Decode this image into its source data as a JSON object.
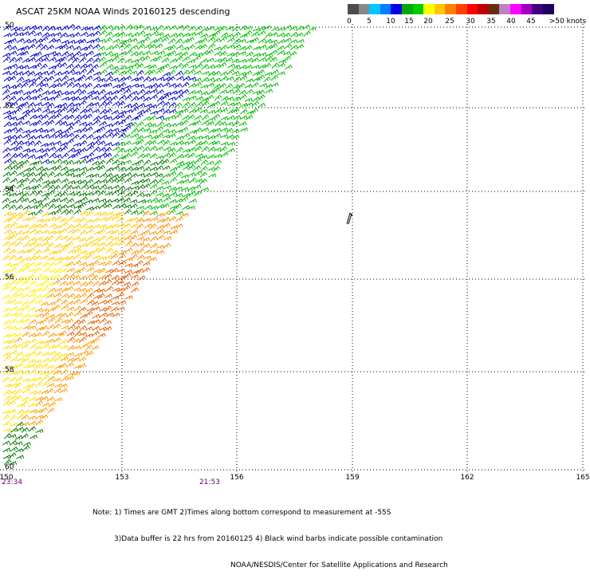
{
  "title": "ASCAT 25KM NOAA Winds 20160125 descending",
  "scale": {
    "colors": [
      "#4d4d4d",
      "#888888",
      "#00c8ff",
      "#0080ff",
      "#0000e0",
      "#00aa00",
      "#00cc00",
      "#ffff00",
      "#ffc800",
      "#ff8000",
      "#ff4000",
      "#ff0000",
      "#c00000",
      "#603010",
      "#c080c0",
      "#ff00ff",
      "#a000c0",
      "#400080",
      "#200060"
    ],
    "labels": [
      "0",
      "5",
      "10",
      "15",
      "20",
      "25",
      "30",
      "35",
      "40",
      "45",
      ">50 knots"
    ]
  },
  "lat_labels": [
    "50",
    "52",
    "54",
    "56",
    "58",
    "60"
  ],
  "lon_labels": [
    "150",
    "153",
    "156",
    "159",
    "162",
    "165"
  ],
  "time_labels": [
    "23:34",
    "21:53"
  ],
  "notes": [
    "Note: 1) Times are GMT 2)Times along bottom correspond to measurement at -55S",
    "3)Data buffer is 22 hrs from 20160125 4) Black wind barbs indicate possible contamination",
    "NOAA/NESDIS/Center for Satellite Applications and Research"
  ]
}
